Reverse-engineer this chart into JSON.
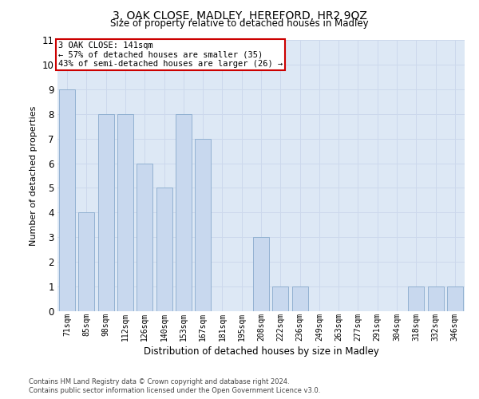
{
  "title": "3, OAK CLOSE, MADLEY, HEREFORD, HR2 9QZ",
  "subtitle": "Size of property relative to detached houses in Madley",
  "xlabel": "Distribution of detached houses by size in Madley",
  "ylabel": "Number of detached properties",
  "categories": [
    "71sqm",
    "85sqm",
    "98sqm",
    "112sqm",
    "126sqm",
    "140sqm",
    "153sqm",
    "167sqm",
    "181sqm",
    "195sqm",
    "208sqm",
    "222sqm",
    "236sqm",
    "249sqm",
    "263sqm",
    "277sqm",
    "291sqm",
    "304sqm",
    "318sqm",
    "332sqm",
    "346sqm"
  ],
  "values": [
    9,
    4,
    8,
    8,
    6,
    5,
    8,
    7,
    0,
    0,
    3,
    1,
    1,
    0,
    0,
    0,
    0,
    0,
    1,
    1,
    1
  ],
  "bar_color": "#c8d8ee",
  "bar_edge_color": "#88aacc",
  "annotation_text": "3 OAK CLOSE: 141sqm\n← 57% of detached houses are smaller (35)\n43% of semi-detached houses are larger (26) →",
  "annotation_box_facecolor": "#ffffff",
  "annotation_box_edgecolor": "#cc0000",
  "ylim": [
    0,
    11
  ],
  "footer_line1": "Contains HM Land Registry data © Crown copyright and database right 2024.",
  "footer_line2": "Contains public sector information licensed under the Open Government Licence v3.0.",
  "grid_color": "#ccd8ec",
  "plot_bg_color": "#dde8f5",
  "fig_bg": "#ffffff"
}
